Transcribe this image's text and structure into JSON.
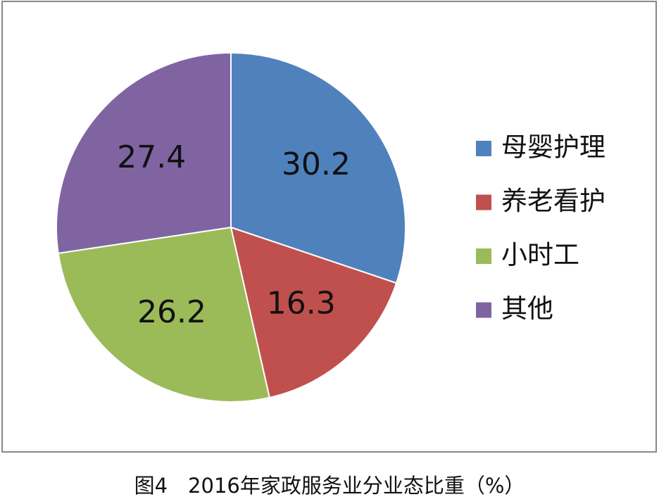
{
  "chart_data": {
    "type": "pie",
    "title": "图4　2016年家政服务业分业态比重（%）",
    "categories": [
      "母婴护理",
      "养老看护",
      "小时工",
      "其他"
    ],
    "values": [
      30.2,
      16.3,
      26.2,
      27.4
    ],
    "colors": [
      "#4f81bd",
      "#c0504d",
      "#9bbb59",
      "#8064a2"
    ],
    "legend": "right"
  }
}
